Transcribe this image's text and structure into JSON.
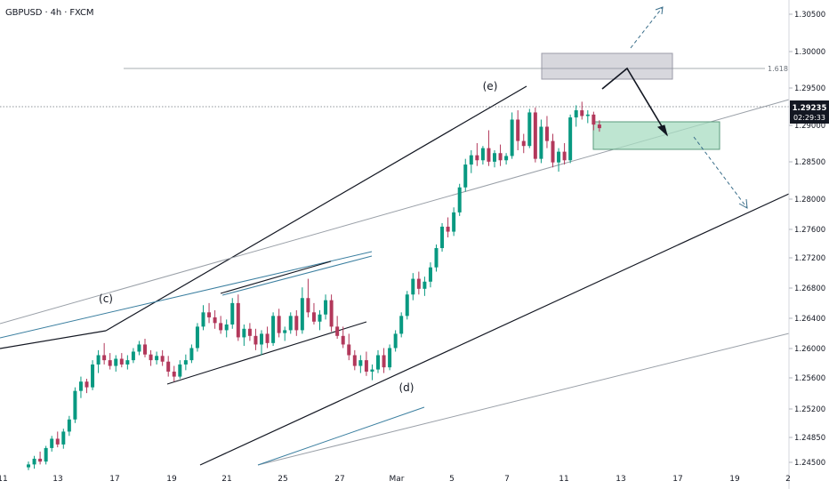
{
  "header": {
    "symbol_line": "GBPUSD · 4h · FXCM"
  },
  "colors": {
    "up": "#089981",
    "down": "#b2385b",
    "channel": "#131722",
    "grey_line": "#9aa0a8",
    "teal_line": "#3b7fa0",
    "price_tag_bg": "#131722",
    "sell_zone": "#c9c9d1",
    "target_zone": "#a8dcc2",
    "projection": "#3a6e8a"
  },
  "chart_data": {
    "type": "candlestick",
    "title": "GBPUSD · 4h · FXCM",
    "ylim": [
      1.2445,
      1.309
    ],
    "y_ticks": [
      "1.30500",
      "1.30000",
      "1.29500",
      "1.29000",
      "1.28500",
      "1.28000",
      "1.27600",
      "1.27200",
      "1.26800",
      "1.26400",
      "1.26000",
      "1.25600",
      "1.25200",
      "1.24850",
      "1.24500"
    ],
    "x_ticks": [
      "11",
      "13",
      "17",
      "19",
      "21",
      "25",
      "27",
      "Mar",
      "5",
      "7",
      "11",
      "13",
      "17",
      "19",
      "2"
    ],
    "last_price": "1.29235",
    "countdown": "02:29:33",
    "fib_label": "1.618",
    "fib_level": 1.2975,
    "wave_labels": [
      "(c)",
      "(d)",
      "(e)"
    ],
    "candles": [
      [
        1.2448,
        1.2456,
        1.2444,
        1.2452
      ],
      [
        1.2452,
        1.2464,
        1.2446,
        1.246
      ],
      [
        1.246,
        1.247,
        1.2452,
        1.2456
      ],
      [
        1.2456,
        1.2478,
        1.2452,
        1.2475
      ],
      [
        1.2475,
        1.2492,
        1.247,
        1.2488
      ],
      [
        1.2488,
        1.2498,
        1.2476,
        1.248
      ],
      [
        1.248,
        1.2502,
        1.2474,
        1.2498
      ],
      [
        1.2498,
        1.252,
        1.2492,
        1.2515
      ],
      [
        1.2515,
        1.256,
        1.251,
        1.2555
      ],
      [
        1.2555,
        1.2575,
        1.2545,
        1.2568
      ],
      [
        1.2568,
        1.2572,
        1.2552,
        1.256
      ],
      [
        1.256,
        1.2598,
        1.2556,
        1.2592
      ],
      [
        1.2592,
        1.2612,
        1.258,
        1.2605
      ],
      [
        1.2605,
        1.2622,
        1.2592,
        1.2598
      ],
      [
        1.2598,
        1.2608,
        1.2585,
        1.259
      ],
      [
        1.259,
        1.2605,
        1.2582,
        1.26
      ],
      [
        1.26,
        1.2608,
        1.2588,
        1.2592
      ],
      [
        1.2592,
        1.2605,
        1.2585,
        1.2598
      ],
      [
        1.2598,
        1.2615,
        1.2594,
        1.261
      ],
      [
        1.261,
        1.2625,
        1.2605,
        1.262
      ],
      [
        1.262,
        1.2628,
        1.2602,
        1.2606
      ],
      [
        1.2606,
        1.2612,
        1.259,
        1.2598
      ],
      [
        1.2598,
        1.261,
        1.2592,
        1.2604
      ],
      [
        1.2604,
        1.2612,
        1.259,
        1.2596
      ],
      [
        1.2596,
        1.2604,
        1.2575,
        1.2582
      ],
      [
        1.2582,
        1.259,
        1.2568,
        1.2575
      ],
      [
        1.2575,
        1.2598,
        1.2572,
        1.2592
      ],
      [
        1.2592,
        1.2606,
        1.2584,
        1.2598
      ],
      [
        1.2598,
        1.262,
        1.2594,
        1.2615
      ],
      [
        1.2615,
        1.265,
        1.261,
        1.2645
      ],
      [
        1.2645,
        1.2675,
        1.264,
        1.2665
      ],
      [
        1.2665,
        1.2678,
        1.265,
        1.2658
      ],
      [
        1.2658,
        1.2668,
        1.2642,
        1.265
      ],
      [
        1.265,
        1.266,
        1.2635,
        1.264
      ],
      [
        1.264,
        1.2655,
        1.263,
        1.2648
      ],
      [
        1.2648,
        1.2685,
        1.2642,
        1.2678
      ],
      [
        1.2678,
        1.269,
        1.2625,
        1.263
      ],
      [
        1.263,
        1.2648,
        1.2618,
        1.2642
      ],
      [
        1.2642,
        1.265,
        1.2625,
        1.2632
      ],
      [
        1.2632,
        1.2642,
        1.2612,
        1.262
      ],
      [
        1.262,
        1.264,
        1.2605,
        1.2635
      ],
      [
        1.2635,
        1.2645,
        1.2615,
        1.2622
      ],
      [
        1.2622,
        1.2665,
        1.2618,
        1.266
      ],
      [
        1.266,
        1.267,
        1.263,
        1.2636
      ],
      [
        1.2636,
        1.2645,
        1.2625,
        1.264
      ],
      [
        1.264,
        1.2665,
        1.2635,
        1.266
      ],
      [
        1.266,
        1.2668,
        1.2632,
        1.264
      ],
      [
        1.264,
        1.27,
        1.2635,
        1.2685
      ],
      [
        1.2685,
        1.2712,
        1.2658,
        1.2665
      ],
      [
        1.2665,
        1.2678,
        1.2648,
        1.2652
      ],
      [
        1.2652,
        1.2668,
        1.264,
        1.2662
      ],
      [
        1.2662,
        1.269,
        1.2655,
        1.2682
      ],
      [
        1.2682,
        1.269,
        1.2638,
        1.2645
      ],
      [
        1.2645,
        1.266,
        1.2628,
        1.2632
      ],
      [
        1.2632,
        1.2645,
        1.2615,
        1.262
      ],
      [
        1.262,
        1.2635,
        1.2598,
        1.2605
      ],
      [
        1.2605,
        1.2612,
        1.2584,
        1.259
      ],
      [
        1.259,
        1.2605,
        1.258,
        1.2598
      ],
      [
        1.2598,
        1.261,
        1.2576,
        1.2582
      ],
      [
        1.2582,
        1.2592,
        1.257,
        1.2585
      ],
      [
        1.2585,
        1.2612,
        1.258,
        1.2605
      ],
      [
        1.2605,
        1.2615,
        1.258,
        1.2588
      ],
      [
        1.2588,
        1.262,
        1.2584,
        1.2615
      ],
      [
        1.2615,
        1.264,
        1.261,
        1.2635
      ],
      [
        1.2635,
        1.2665,
        1.263,
        1.266
      ],
      [
        1.266,
        1.2695,
        1.2655,
        1.269
      ],
      [
        1.269,
        1.272,
        1.2682,
        1.2712
      ],
      [
        1.2712,
        1.2722,
        1.269,
        1.2698
      ],
      [
        1.2698,
        1.2715,
        1.2688,
        1.2708
      ],
      [
        1.2708,
        1.2735,
        1.27,
        1.2728
      ],
      [
        1.2728,
        1.276,
        1.2722,
        1.2755
      ],
      [
        1.2755,
        1.279,
        1.275,
        1.2785
      ],
      [
        1.2785,
        1.2798,
        1.277,
        1.2778
      ],
      [
        1.2778,
        1.2812,
        1.2772,
        1.2805
      ],
      [
        1.2805,
        1.2845,
        1.28,
        1.284
      ],
      [
        1.284,
        1.288,
        1.2834,
        1.2872
      ],
      [
        1.2872,
        1.2892,
        1.286,
        1.2885
      ],
      [
        1.2885,
        1.2902,
        1.287,
        1.2878
      ],
      [
        1.2878,
        1.2898,
        1.2872,
        1.2895
      ],
      [
        1.2895,
        1.292,
        1.287,
        1.2876
      ],
      [
        1.2876,
        1.2892,
        1.2868,
        1.2888
      ],
      [
        1.2888,
        1.29,
        1.287,
        1.2878
      ],
      [
        1.2878,
        1.2888,
        1.2872,
        1.2884
      ],
      [
        1.2884,
        1.2945,
        1.288,
        1.2935
      ],
      [
        1.2935,
        1.2948,
        1.2892,
        1.2905
      ],
      [
        1.2905,
        1.2915,
        1.2888,
        1.2898
      ],
      [
        1.2898,
        1.295,
        1.2895,
        1.2945
      ],
      [
        1.2945,
        1.2952,
        1.2875,
        1.288
      ],
      [
        1.288,
        1.2935,
        1.2874,
        1.2925
      ],
      [
        1.2925,
        1.294,
        1.2895,
        1.2905
      ],
      [
        1.2905,
        1.2915,
        1.2868,
        1.2875
      ],
      [
        1.2875,
        1.2895,
        1.2862,
        1.289
      ],
      [
        1.289,
        1.2902,
        1.2872,
        1.2878
      ],
      [
        1.2878,
        1.2942,
        1.2874,
        1.2938
      ],
      [
        1.2938,
        1.2955,
        1.2925,
        1.2948
      ],
      [
        1.2948,
        1.296,
        1.2935,
        1.294
      ],
      [
        1.294,
        1.2948,
        1.293,
        1.2942
      ],
      [
        1.2942,
        1.2946,
        1.292,
        1.2928
      ],
      [
        1.2928,
        1.2934,
        1.2918,
        1.2923
      ]
    ]
  }
}
